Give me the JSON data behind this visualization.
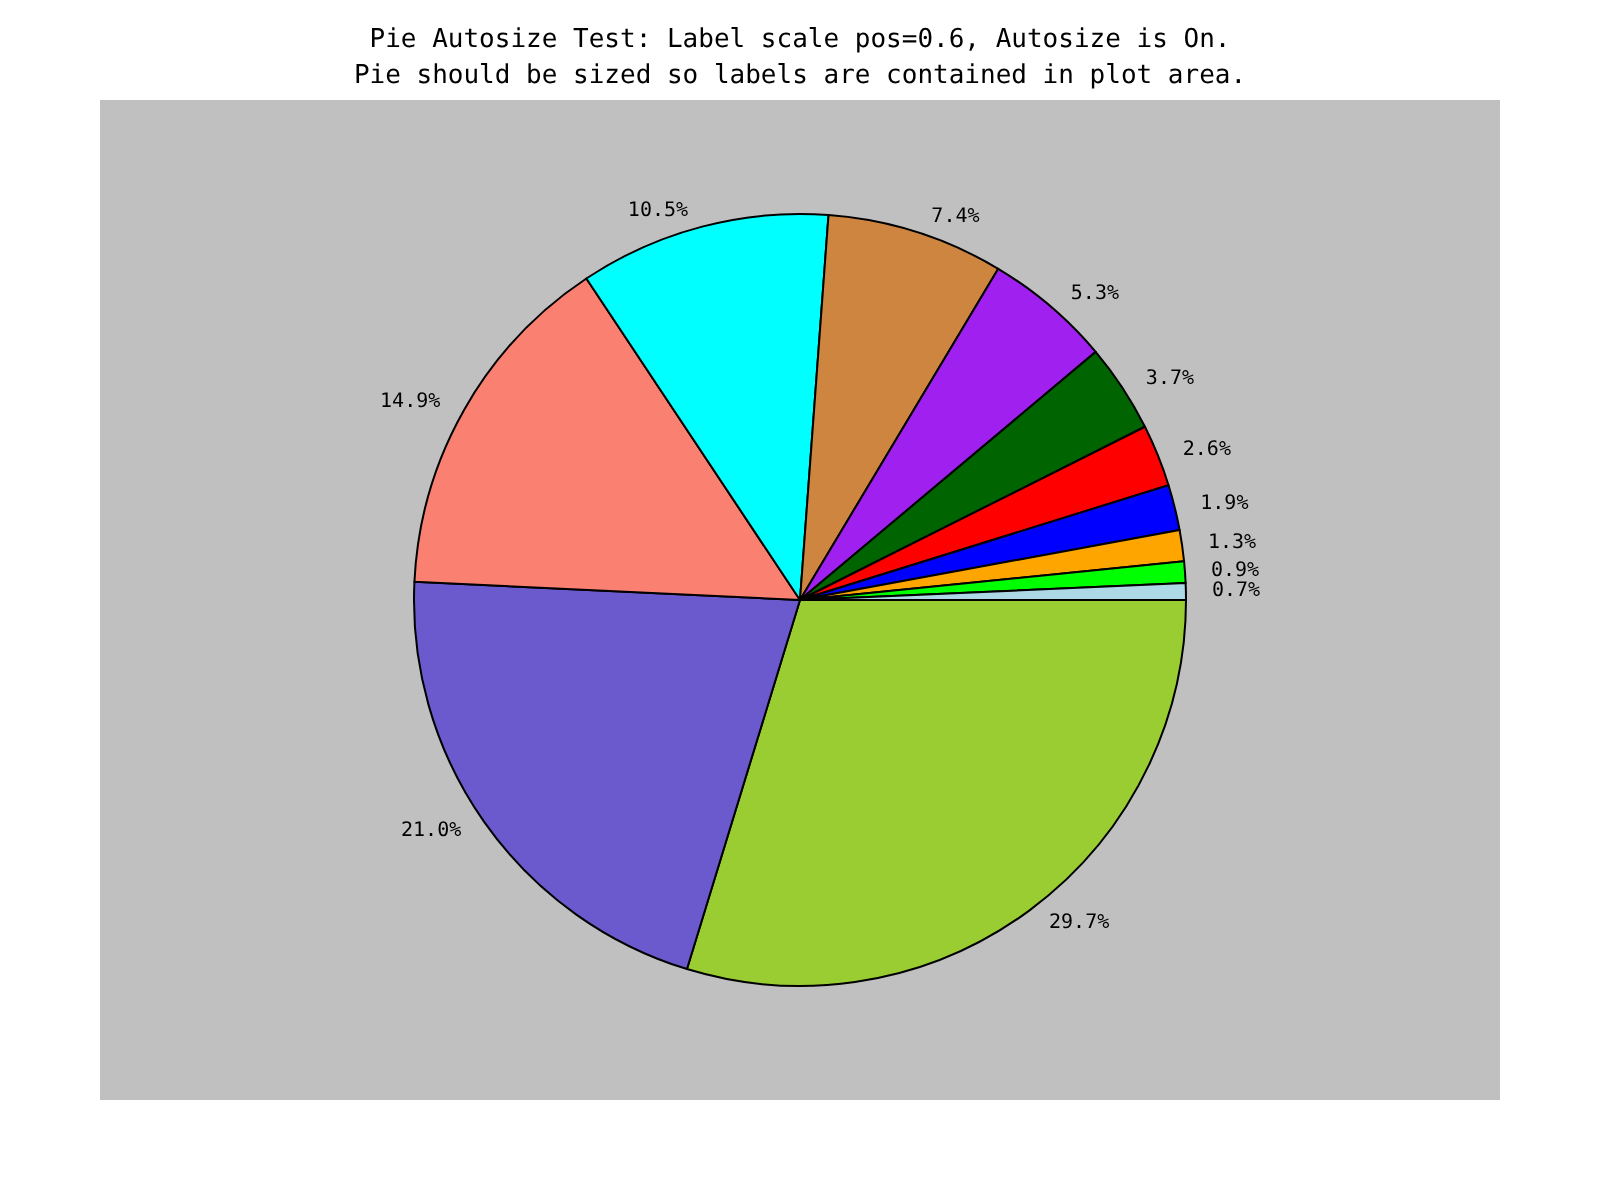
{
  "chart_data": {
    "type": "pie",
    "title": "Pie Autosize Test: Label scale pos=0.6, Autosize is On.\nPie should be sized so labels are contained in plot area.",
    "categories": [
      null,
      null,
      null,
      null,
      null,
      null,
      null,
      null,
      null,
      null,
      null,
      null
    ],
    "values": [
      29.7,
      21.0,
      14.9,
      10.5,
      7.4,
      5.3,
      3.7,
      2.6,
      1.9,
      1.3,
      0.9,
      0.7
    ],
    "value_labels": [
      "29.7%",
      "21.0%",
      "14.9%",
      "10.5%",
      "7.4%",
      "5.3%",
      "3.7%",
      "2.6%",
      "1.9%",
      "1.3%",
      "0.9%",
      "0.7%"
    ],
    "colors": [
      "#9acd32",
      "#6a5acd",
      "#fa8072",
      "#00ffff",
      "#cd853f",
      "#a020f0",
      "#006400",
      "#ff0000",
      "#0000ff",
      "#ffa500",
      "#00ff00",
      "#add8e6"
    ]
  }
}
